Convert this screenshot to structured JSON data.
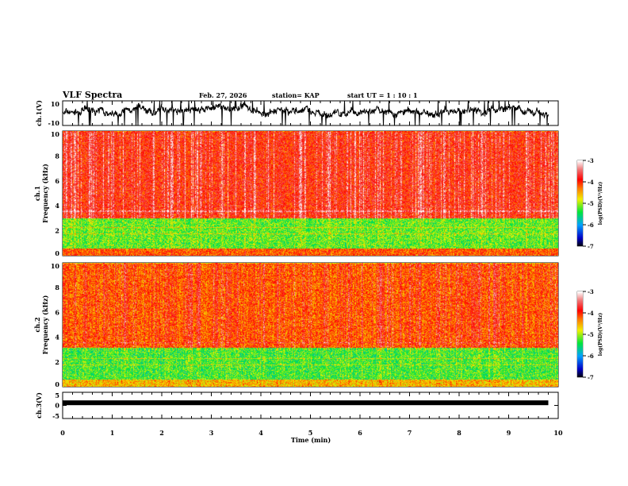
{
  "header": {
    "title": "VLF Spectra",
    "date": "Feb. 27, 2026",
    "station": "station= KAP",
    "start_ut": "start  UT =   1 : 10 : 1"
  },
  "chart_data": [
    {
      "type": "line",
      "panel": "ch1-waveform",
      "ylabel": "ch.1(V)",
      "ylim": [
        -10,
        10
      ],
      "yticks": [
        "10",
        "-10"
      ],
      "xlim": [
        0,
        10
      ],
      "description_values": {
        "baseline_v": 1,
        "noise_amplitude_v": 5
      }
    },
    {
      "type": "heatmap",
      "panel": "ch1-spectrogram",
      "ylabel": "ch.1\nFrequency (kHz)",
      "ylim": [
        0,
        10
      ],
      "yticks": [
        "0",
        "2",
        "4",
        "6",
        "8",
        "10"
      ],
      "xlim": [
        0,
        10
      ],
      "colorbar": {
        "label": "log(PSD)(V²/Hz)",
        "range": [
          -7,
          -3
        ],
        "ticks": [
          "-3",
          "-4",
          "-5",
          "-6",
          "-7"
        ]
      },
      "bands": [
        {
          "freq_khz": [
            0,
            0.6
          ],
          "log_psd": -4.2
        },
        {
          "freq_khz": [
            0.6,
            3.0
          ],
          "log_psd": -5.2
        },
        {
          "freq_khz": [
            3.0,
            10
          ],
          "log_psd": -3.9
        }
      ]
    },
    {
      "type": "heatmap",
      "panel": "ch2-spectrogram",
      "ylabel": "ch.2\nFrequency (kHz)",
      "ylim": [
        0,
        10
      ],
      "yticks": [
        "0",
        "2",
        "4",
        "6",
        "8",
        "10"
      ],
      "xlim": [
        0,
        10
      ],
      "colorbar": {
        "label": "log(PSD)(V²/Hz)",
        "range": [
          -7,
          -3
        ],
        "ticks": [
          "-3",
          "-4",
          "-5",
          "-6",
          "-7"
        ]
      },
      "bands": [
        {
          "freq_khz": [
            0,
            0.6
          ],
          "log_psd": -4.6
        },
        {
          "freq_khz": [
            0.6,
            3.2
          ],
          "log_psd": -5.3
        },
        {
          "freq_khz": [
            3.2,
            10
          ],
          "log_psd": -4.2
        }
      ]
    },
    {
      "type": "line",
      "panel": "ch3-waveform",
      "ylabel": "ch.3(V)",
      "ylim": [
        -5,
        5
      ],
      "yticks": [
        "5",
        "0",
        "-5"
      ],
      "xlim": [
        0,
        10
      ],
      "description_values": {
        "constant_v": 1,
        "end_min": 9.8
      }
    }
  ],
  "xaxis": {
    "label": "Time  (min)",
    "ticks": [
      "0",
      "1",
      "2",
      "3",
      "4",
      "5",
      "6",
      "7",
      "8",
      "9",
      "10"
    ]
  }
}
